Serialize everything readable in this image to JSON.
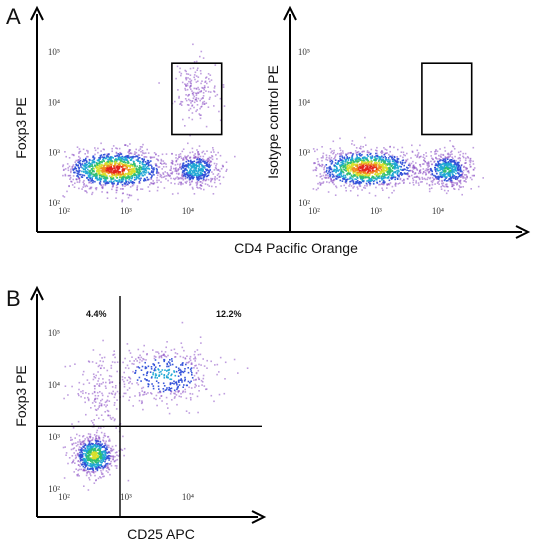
{
  "chart_data": [
    {
      "panel": "A",
      "type": "scatter",
      "subtype": "flow-cytometry-density",
      "xlabel": "CD4 Pacific Orange",
      "ylabel": "Foxp3 PE",
      "x_scale": "log",
      "y_scale": "log",
      "xlim": [
        100,
        100000
      ],
      "ylim": [
        100,
        300000
      ],
      "x_ticks": [
        {
          "v": 100,
          "label": "10²"
        },
        {
          "v": 1000,
          "label": "10³"
        },
        {
          "v": 10000,
          "label": "10⁴"
        }
      ],
      "y_ticks": [
        {
          "v": 100,
          "label": "10²"
        },
        {
          "v": 1000,
          "label": "10³"
        },
        {
          "v": 10000,
          "label": "10⁴"
        },
        {
          "v": 100000,
          "label": "10⁵"
        }
      ],
      "populations": [
        {
          "cx": 650,
          "cy": 480,
          "n": 1300,
          "sx": 0.42,
          "sy": 0.19
        },
        {
          "cx": 13000,
          "cy": 480,
          "n": 500,
          "sx": 0.2,
          "sy": 0.18
        },
        {
          "cx": 13000,
          "cy": 18000,
          "n": 180,
          "sx": 0.16,
          "sy": 0.28
        }
      ],
      "gate": {
        "x": [
          5500,
          35000
        ],
        "y": [
          2300,
          60000
        ]
      },
      "grid": false
    },
    {
      "panel": "A",
      "type": "scatter",
      "subtype": "flow-cytometry-density",
      "xlabel": "CD4 Pacific Orange",
      "ylabel": "Isotype control PE",
      "x_scale": "log",
      "y_scale": "log",
      "xlim": [
        100,
        100000
      ],
      "ylim": [
        100,
        300000
      ],
      "x_ticks": [
        {
          "v": 100,
          "label": "10²"
        },
        {
          "v": 1000,
          "label": "10³"
        },
        {
          "v": 10000,
          "label": "10⁴"
        }
      ],
      "y_ticks": [
        {
          "v": 100,
          "label": "10²"
        },
        {
          "v": 1000,
          "label": "10³"
        },
        {
          "v": 10000,
          "label": "10⁴"
        },
        {
          "v": 100000,
          "label": "10⁵"
        }
      ],
      "populations": [
        {
          "cx": 700,
          "cy": 500,
          "n": 1300,
          "sx": 0.42,
          "sy": 0.19
        },
        {
          "cx": 13500,
          "cy": 470,
          "n": 550,
          "sx": 0.2,
          "sy": 0.17
        }
      ],
      "gate": {
        "x": [
          5500,
          35000
        ],
        "y": [
          2300,
          60000
        ]
      },
      "grid": false
    },
    {
      "panel": "B",
      "type": "scatter",
      "subtype": "flow-cytometry-density",
      "xlabel": "CD25 APC",
      "ylabel": "Foxp3 PE",
      "x_scale": "log",
      "y_scale": "log",
      "xlim": [
        100,
        100000
      ],
      "ylim": [
        100,
        300000
      ],
      "x_ticks": [
        {
          "v": 100,
          "label": "10²"
        },
        {
          "v": 1000,
          "label": "10³"
        },
        {
          "v": 10000,
          "label": "10⁴"
        }
      ],
      "y_ticks": [
        {
          "v": 100,
          "label": "10²"
        },
        {
          "v": 1000,
          "label": "10³"
        },
        {
          "v": 10000,
          "label": "10⁴"
        },
        {
          "v": 100000,
          "label": "10⁵"
        }
      ],
      "quadrant_split": {
        "x": 800,
        "y": 1600
      },
      "quadrant_labels": {
        "upper_left": "4.4%",
        "upper_right": "12.2%"
      },
      "populations": [
        {
          "cx": 300,
          "cy": 450,
          "n": 700,
          "sx": 0.17,
          "sy": 0.2
        },
        {
          "cx": 4000,
          "cy": 16000,
          "n": 420,
          "sx": 0.45,
          "sy": 0.3
        },
        {
          "cx": 350,
          "cy": 7000,
          "n": 160,
          "sx": 0.25,
          "sy": 0.4
        }
      ],
      "grid": false
    }
  ],
  "colors": {
    "axis": "#000000",
    "sparse": "#8a4fc4",
    "density_scale": [
      "#8a4fc4",
      "#2f4fd8",
      "#1fa6d4",
      "#2fbf71",
      "#d8df2a",
      "#f08a1c",
      "#e3231d"
    ]
  },
  "labels": {
    "panel_a": "A",
    "panel_b": "B"
  }
}
